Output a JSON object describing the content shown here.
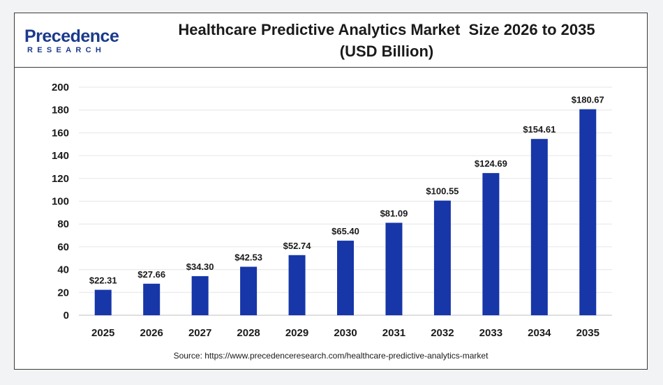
{
  "brand": {
    "logo_main": "Precedence",
    "logo_sub": "RESEARCH",
    "brand_color": "#1b3a8c"
  },
  "header": {
    "title_line1": "Healthcare Predictive Analytics Market  Size 2026 to 2035",
    "title_line2": "(USD Billion)"
  },
  "footer": {
    "source": "Source: https://www.precedenceresearch.com/healthcare-predictive-analytics-market"
  },
  "chart_data": {
    "type": "bar",
    "categories": [
      "2025",
      "2026",
      "2027",
      "2028",
      "2029",
      "2030",
      "2031",
      "2032",
      "2033",
      "2034",
      "2035"
    ],
    "values": [
      22.31,
      27.66,
      34.3,
      42.53,
      52.74,
      65.4,
      81.09,
      100.55,
      124.69,
      154.61,
      180.67
    ],
    "data_labels": [
      "$22.31",
      "$27.66",
      "$34.30",
      "$42.53",
      "$52.74",
      "$65.40",
      "$81.09",
      "$100.55",
      "$124.69",
      "$154.61",
      "$180.67"
    ],
    "title": "Healthcare Predictive Analytics Market  Size 2026 to 2035 (USD Billion)",
    "xlabel": "",
    "ylabel": "",
    "ylim": [
      0,
      200
    ],
    "yticks": [
      0,
      20,
      40,
      60,
      80,
      100,
      120,
      140,
      160,
      180,
      200
    ],
    "grid": true,
    "legend": "none",
    "bar_color": "#1736a8"
  }
}
